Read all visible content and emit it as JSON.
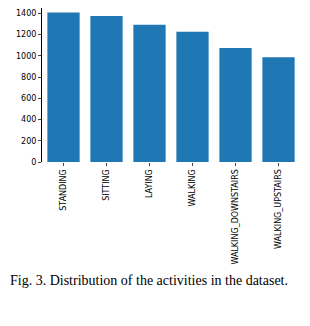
{
  "chart_data": {
    "type": "bar",
    "caption": "Fig. 3. Distribution of the activities in the dataset.",
    "categories": [
      "STANDING",
      "SITTING",
      "LAYING",
      "WALKING",
      "WALKING_DOWNSTAIRS",
      "WALKING_UPSTAIRS"
    ],
    "values": [
      1407,
      1374,
      1292,
      1226,
      1073,
      986
    ],
    "color": "#1f77b4",
    "ylim": [
      0,
      1450
    ],
    "yticks": [
      0,
      200,
      400,
      600,
      800,
      1000,
      1200,
      1400
    ],
    "grid": false
  }
}
